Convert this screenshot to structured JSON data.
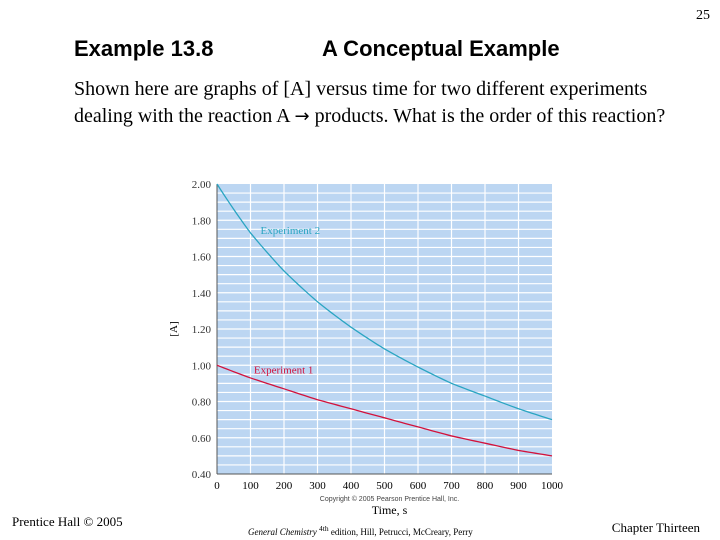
{
  "page_number": "25",
  "title": {
    "example": "Example 13.8",
    "name": "A Conceptual Example"
  },
  "body": {
    "text_before_arrow": "Shown here are graphs of [A] versus time for two different experiments dealing with the reaction A ",
    "arrow": "→",
    "text_after_arrow": " products. What is the order of this reaction?"
  },
  "footer": {
    "left": "Prentice Hall © 2005",
    "center_italic": "General Chemistry",
    "center_sup": "4th",
    "center_rest": " edition, Hill, Petrucci, McCreary, Perry",
    "right": "Chapter Thirteen"
  },
  "colors": {
    "plot_bg": "#bcd6f2",
    "grid": "#ffffff",
    "experiment1": "#d2123c",
    "experiment2": "#2aa5c2",
    "axis_text": "#333333"
  },
  "chart_data": {
    "type": "line",
    "xlabel": "Time, s",
    "ylabel": "[A]",
    "xlim": [
      0,
      1000
    ],
    "ylim": [
      0.4,
      2.0
    ],
    "x_ticks": [
      0,
      100,
      200,
      300,
      400,
      500,
      600,
      700,
      800,
      900,
      1000
    ],
    "y_ticks": [
      "0.40",
      "0.60",
      "0.80",
      "1.00",
      "1.20",
      "1.40",
      "1.60",
      "1.80",
      "2.00"
    ],
    "grid": true,
    "copyright": "Copyright © 2005 Pearson Prentice Hall, Inc.",
    "x": [
      0,
      100,
      200,
      300,
      400,
      500,
      600,
      700,
      800,
      900,
      1000
    ],
    "series": [
      {
        "name": "Experiment 1",
        "values": [
          1.0,
          0.93,
          0.87,
          0.81,
          0.76,
          0.71,
          0.66,
          0.61,
          0.57,
          0.53,
          0.5
        ]
      },
      {
        "name": "Experiment 2",
        "values": [
          2.0,
          1.73,
          1.52,
          1.35,
          1.21,
          1.09,
          0.99,
          0.9,
          0.83,
          0.76,
          0.7
        ]
      }
    ]
  }
}
